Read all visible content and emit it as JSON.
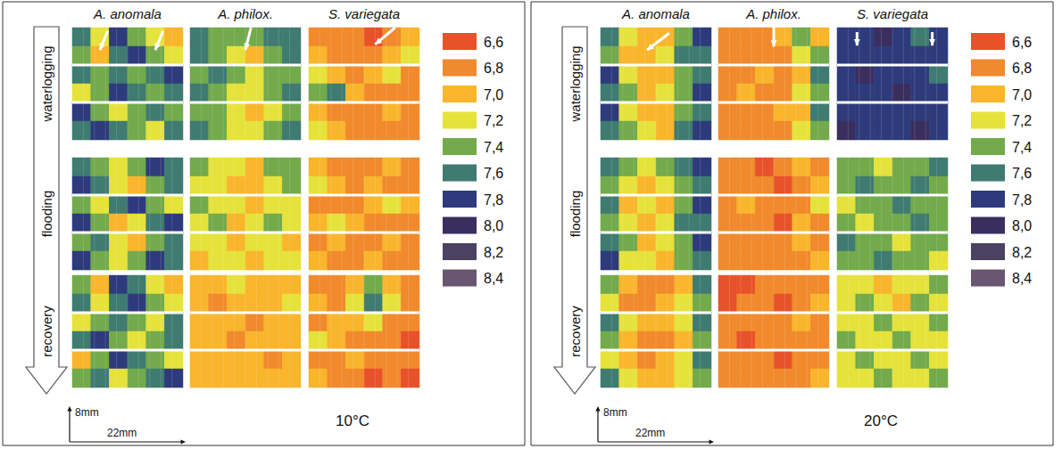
{
  "chart_data": [
    {
      "type": "heatmap",
      "title": "10°C",
      "columns": [
        "A. anomala",
        "A. philox.",
        "S. variegata"
      ],
      "rows": [
        "waterlogging",
        "flooding",
        "recovery"
      ],
      "scale_bar": {
        "vertical": "8mm",
        "horizontal": "22mm"
      },
      "colorbar": {
        "ticks": [
          {
            "value": 6.6,
            "label": "6,6"
          },
          {
            "value": 6.8,
            "label": "6,8"
          },
          {
            "value": 7.0,
            "label": "7,0"
          },
          {
            "value": 7.2,
            "label": "7,2"
          },
          {
            "value": 7.4,
            "label": "7,4"
          },
          {
            "value": 7.6,
            "label": "7,6"
          },
          {
            "value": 7.8,
            "label": "7,8"
          },
          {
            "value": 8.0,
            "label": "8,0"
          },
          {
            "value": 8.2,
            "label": "8,2"
          },
          {
            "value": 8.4,
            "label": "8,4"
          }
        ],
        "colors": [
          "#e8522a",
          "#f08a2c",
          "#f9b52c",
          "#e5e23c",
          "#72aa4c",
          "#3f7b70",
          "#2d3b7c",
          "#3a2e5e",
          "#4b4262",
          "#6b5672"
        ]
      },
      "cells": [
        [
          [
            [
              7.6,
              7.2,
              7.8,
              7.4,
              7.2,
              7.0
            ],
            [
              7.4,
              7.0,
              7.6,
              7.8,
              7.4,
              7.2
            ],
            [
              7.6,
              7.4,
              7.6,
              7.4,
              7.6,
              7.8
            ],
            [
              7.2,
              7.4,
              7.8,
              7.6,
              7.4,
              7.6
            ],
            [
              7.8,
              7.4,
              7.2,
              7.4,
              7.6,
              7.4
            ],
            [
              7.6,
              7.8,
              7.6,
              7.4,
              7.2,
              7.6
            ]
          ],
          [
            [
              7.6,
              7.4,
              7.4,
              7.4,
              7.6,
              7.6
            ],
            [
              7.6,
              7.4,
              7.2,
              7.0,
              7.4,
              7.6
            ],
            [
              7.4,
              7.6,
              7.4,
              7.2,
              7.4,
              7.4
            ],
            [
              7.6,
              7.4,
              7.2,
              7.2,
              7.4,
              7.6
            ],
            [
              7.4,
              7.4,
              7.2,
              7.0,
              7.2,
              7.4
            ],
            [
              7.6,
              7.4,
              7.2,
              7.2,
              7.4,
              7.6
            ]
          ],
          [
            [
              6.8,
              6.8,
              6.8,
              6.6,
              6.8,
              7.0
            ],
            [
              7.0,
              6.8,
              6.8,
              6.8,
              7.0,
              7.2
            ],
            [
              7.2,
              7.0,
              6.8,
              7.0,
              7.2,
              6.8
            ],
            [
              7.4,
              7.6,
              7.0,
              6.8,
              6.8,
              6.8
            ],
            [
              7.0,
              6.8,
              6.8,
              6.8,
              7.0,
              6.8
            ],
            [
              7.2,
              7.0,
              6.8,
              6.8,
              6.8,
              6.8
            ]
          ]
        ],
        [
          [
            [
              7.6,
              7.4,
              7.2,
              7.4,
              7.8,
              7.6
            ],
            [
              7.8,
              7.6,
              7.2,
              7.0,
              7.4,
              7.6
            ],
            [
              7.4,
              7.2,
              7.6,
              7.8,
              7.4,
              7.2
            ],
            [
              7.8,
              7.4,
              7.0,
              7.2,
              7.6,
              7.8
            ],
            [
              7.4,
              7.6,
              7.2,
              7.0,
              7.4,
              7.6
            ],
            [
              7.8,
              7.4,
              7.2,
              7.4,
              7.8,
              7.6
            ]
          ],
          [
            [
              7.4,
              7.2,
              7.2,
              7.0,
              7.4,
              7.4
            ],
            [
              7.2,
              7.2,
              7.0,
              7.0,
              7.2,
              7.4
            ],
            [
              7.4,
              7.2,
              7.2,
              7.0,
              7.2,
              7.2
            ],
            [
              7.2,
              7.4,
              7.0,
              7.2,
              7.4,
              7.2
            ],
            [
              7.2,
              7.2,
              7.0,
              7.2,
              7.2,
              7.0
            ],
            [
              7.0,
              7.2,
              7.2,
              7.0,
              7.2,
              7.2
            ]
          ],
          [
            [
              7.0,
              6.8,
              6.8,
              6.8,
              7.0,
              6.8
            ],
            [
              7.2,
              7.0,
              6.8,
              7.0,
              6.8,
              6.8
            ],
            [
              6.8,
              6.8,
              6.8,
              7.0,
              7.2,
              7.0
            ],
            [
              7.0,
              7.2,
              7.0,
              6.8,
              6.8,
              6.8
            ],
            [
              6.8,
              7.0,
              6.8,
              6.8,
              7.0,
              6.8
            ],
            [
              7.0,
              6.8,
              6.8,
              7.0,
              6.8,
              6.8
            ]
          ]
        ],
        [
          [
            [
              7.4,
              7.0,
              7.8,
              7.6,
              7.2,
              7.0
            ],
            [
              7.6,
              7.2,
              7.6,
              7.8,
              7.4,
              7.2
            ],
            [
              7.2,
              7.4,
              7.6,
              7.4,
              7.2,
              7.6
            ],
            [
              7.6,
              7.8,
              7.4,
              7.2,
              7.4,
              7.6
            ],
            [
              7.0,
              7.4,
              7.8,
              7.6,
              7.4,
              7.2
            ],
            [
              7.4,
              7.6,
              7.2,
              7.4,
              7.6,
              7.8
            ]
          ],
          [
            [
              7.0,
              7.0,
              7.2,
              7.0,
              7.0,
              7.0
            ],
            [
              7.0,
              6.8,
              7.0,
              7.0,
              7.0,
              7.2
            ],
            [
              7.0,
              7.0,
              7.0,
              6.8,
              7.0,
              7.0
            ],
            [
              7.0,
              7.0,
              6.8,
              7.0,
              7.0,
              7.0
            ],
            [
              7.0,
              7.0,
              7.0,
              7.0,
              6.8,
              7.0
            ],
            [
              7.0,
              7.0,
              7.0,
              7.0,
              7.0,
              7.0
            ]
          ],
          [
            [
              6.8,
              6.8,
              7.0,
              7.4,
              7.0,
              6.8
            ],
            [
              7.0,
              6.8,
              7.2,
              7.6,
              7.2,
              6.8
            ],
            [
              6.8,
              7.0,
              7.0,
              7.2,
              6.8,
              6.8
            ],
            [
              7.2,
              7.0,
              6.8,
              6.8,
              6.8,
              6.6
            ],
            [
              6.8,
              6.8,
              7.0,
              6.8,
              6.8,
              6.8
            ],
            [
              7.0,
              6.8,
              6.8,
              6.6,
              6.8,
              6.6
            ]
          ]
        ]
      ]
    },
    {
      "type": "heatmap",
      "title": "20°C",
      "columns": [
        "A. anomala",
        "A. philox.",
        "S. variegata"
      ],
      "rows": [
        "waterlogging",
        "flooding",
        "recovery"
      ],
      "scale_bar": {
        "vertical": "8mm",
        "horizontal": "22mm"
      },
      "colorbar": {
        "ticks": [
          {
            "value": 6.6,
            "label": "6,6"
          },
          {
            "value": 6.8,
            "label": "6,8"
          },
          {
            "value": 7.0,
            "label": "7,0"
          },
          {
            "value": 7.2,
            "label": "7,2"
          },
          {
            "value": 7.4,
            "label": "7,4"
          },
          {
            "value": 7.6,
            "label": "7,6"
          },
          {
            "value": 7.8,
            "label": "7,8"
          },
          {
            "value": 8.0,
            "label": "8,0"
          },
          {
            "value": 8.2,
            "label": "8,2"
          },
          {
            "value": 8.4,
            "label": "8,4"
          }
        ],
        "colors": [
          "#e8522a",
          "#f08a2c",
          "#f9b52c",
          "#e5e23c",
          "#72aa4c",
          "#3f7b70",
          "#2d3b7c",
          "#3a2e5e",
          "#4b4262",
          "#6b5672"
        ]
      },
      "cells": [
        [
          [
            [
              7.6,
              7.2,
              7.0,
              7.0,
              7.4,
              7.8
            ],
            [
              7.4,
              7.0,
              7.0,
              7.2,
              7.6,
              7.6
            ],
            [
              7.8,
              7.2,
              7.0,
              7.0,
              7.4,
              7.6
            ],
            [
              7.6,
              7.4,
              7.0,
              7.2,
              7.4,
              7.8
            ],
            [
              7.8,
              7.2,
              7.0,
              7.0,
              7.4,
              7.6
            ],
            [
              7.6,
              7.4,
              7.2,
              7.0,
              7.6,
              7.8
            ]
          ],
          [
            [
              6.8,
              6.8,
              6.8,
              7.0,
              7.4,
              7.0
            ],
            [
              6.8,
              6.8,
              6.8,
              6.8,
              7.2,
              7.4
            ],
            [
              6.8,
              6.8,
              7.0,
              6.8,
              7.0,
              7.6
            ],
            [
              6.8,
              7.0,
              6.8,
              6.8,
              7.2,
              7.4
            ],
            [
              6.8,
              6.8,
              6.8,
              7.0,
              7.0,
              7.6
            ],
            [
              6.8,
              6.8,
              6.8,
              6.8,
              7.2,
              7.4
            ]
          ],
          [
            [
              7.8,
              7.8,
              8.0,
              7.8,
              7.6,
              7.8
            ],
            [
              7.8,
              7.8,
              7.8,
              7.8,
              7.8,
              7.8
            ],
            [
              7.8,
              8.0,
              7.8,
              7.8,
              7.8,
              7.6
            ],
            [
              7.8,
              7.8,
              7.8,
              8.0,
              7.8,
              7.8
            ],
            [
              7.8,
              7.8,
              7.8,
              7.8,
              7.8,
              7.8
            ],
            [
              8.0,
              7.8,
              7.8,
              7.8,
              8.0,
              7.8
            ]
          ]
        ],
        [
          [
            [
              7.6,
              7.4,
              7.2,
              7.4,
              7.6,
              7.8
            ],
            [
              7.4,
              7.2,
              7.0,
              7.2,
              7.4,
              7.6
            ],
            [
              7.6,
              7.0,
              7.2,
              7.0,
              7.4,
              7.8
            ],
            [
              7.4,
              7.2,
              7.0,
              7.2,
              7.6,
              7.6
            ],
            [
              7.6,
              7.4,
              7.0,
              7.2,
              7.4,
              7.8
            ],
            [
              7.8,
              7.2,
              7.2,
              7.0,
              7.4,
              7.6
            ]
          ],
          [
            [
              6.8,
              6.8,
              6.6,
              6.8,
              7.0,
              6.8
            ],
            [
              6.8,
              6.8,
              6.8,
              6.6,
              6.8,
              7.0
            ],
            [
              6.8,
              7.0,
              6.8,
              6.8,
              6.8,
              7.2
            ],
            [
              6.8,
              6.8,
              6.8,
              6.6,
              7.0,
              6.8
            ],
            [
              6.8,
              6.8,
              6.8,
              6.8,
              7.0,
              6.8
            ],
            [
              6.8,
              6.8,
              6.8,
              6.8,
              6.8,
              7.0
            ]
          ],
          [
            [
              7.4,
              7.4,
              7.2,
              7.4,
              7.4,
              7.6
            ],
            [
              7.4,
              7.6,
              7.4,
              7.4,
              7.6,
              7.4
            ],
            [
              7.2,
              7.4,
              7.4,
              7.6,
              7.4,
              7.4
            ],
            [
              7.4,
              7.2,
              7.4,
              7.4,
              7.6,
              7.4
            ],
            [
              7.6,
              7.4,
              7.4,
              7.2,
              7.4,
              7.4
            ],
            [
              7.4,
              7.4,
              7.6,
              7.4,
              7.4,
              7.2
            ]
          ]
        ],
        [
          [
            [
              7.4,
              7.0,
              6.8,
              6.8,
              7.0,
              7.6
            ],
            [
              7.2,
              6.8,
              6.8,
              7.0,
              7.2,
              7.4
            ],
            [
              7.6,
              7.2,
              7.0,
              7.0,
              7.2,
              7.6
            ],
            [
              7.4,
              7.0,
              6.8,
              6.8,
              7.0,
              7.4
            ],
            [
              7.2,
              7.0,
              6.8,
              7.0,
              7.2,
              7.6
            ],
            [
              7.6,
              7.2,
              7.0,
              7.0,
              7.2,
              7.4
            ]
          ],
          [
            [
              6.6,
              6.6,
              6.8,
              6.8,
              6.8,
              6.8
            ],
            [
              6.6,
              6.8,
              6.8,
              6.6,
              6.8,
              7.0
            ],
            [
              6.8,
              6.8,
              6.8,
              6.8,
              7.0,
              6.8
            ],
            [
              6.8,
              6.6,
              6.8,
              6.8,
              6.8,
              6.8
            ],
            [
              6.8,
              6.8,
              6.8,
              6.6,
              6.8,
              6.8
            ],
            [
              6.8,
              6.8,
              6.8,
              6.8,
              6.8,
              7.0
            ]
          ],
          [
            [
              7.2,
              7.2,
              7.0,
              7.2,
              7.2,
              7.4
            ],
            [
              7.2,
              7.4,
              7.2,
              7.0,
              7.4,
              7.2
            ],
            [
              7.2,
              7.2,
              7.4,
              7.2,
              7.2,
              7.4
            ],
            [
              7.4,
              7.2,
              7.2,
              7.4,
              7.2,
              7.2
            ],
            [
              7.2,
              7.4,
              7.2,
              7.2,
              7.4,
              7.2
            ],
            [
              7.2,
              7.2,
              7.4,
              7.2,
              7.2,
              7.4
            ]
          ]
        ]
      ]
    }
  ]
}
